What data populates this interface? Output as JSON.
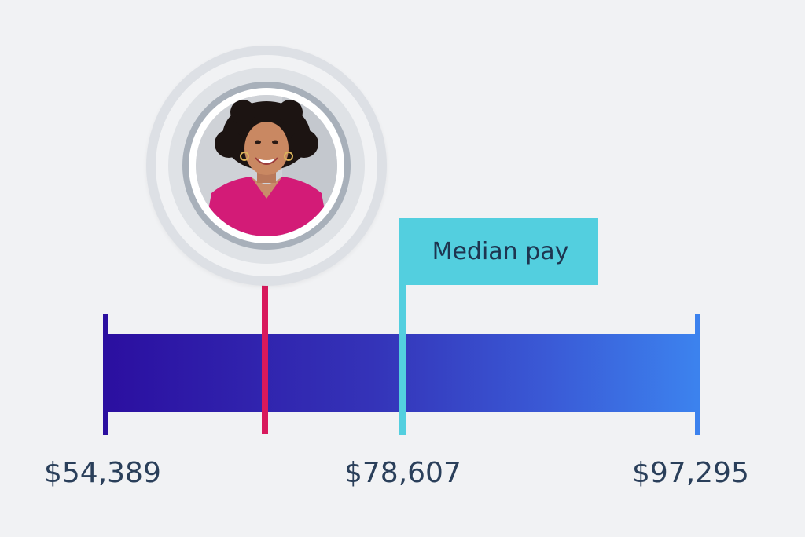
{
  "median_label": "Median pay",
  "values": {
    "min": "$54,389",
    "median": "$78,607",
    "max": "$97,295"
  },
  "colors": {
    "background": "#f1f2f4",
    "bar_start": "#2b0fa0",
    "bar_end": "#3c82ee",
    "person_marker": "#d8195c",
    "median_marker": "#53cfdf",
    "text": "#2a3f5a"
  },
  "avatar": {
    "icon": "person-photo",
    "description_free": true
  }
}
